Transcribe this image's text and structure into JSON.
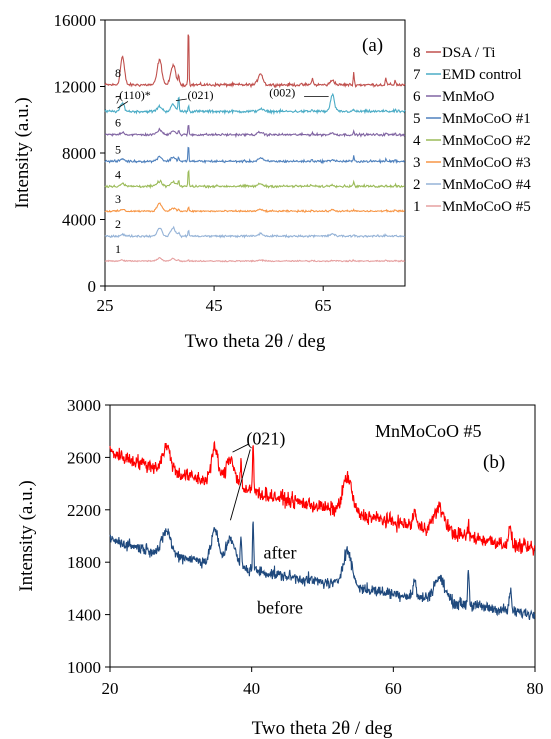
{
  "chart_data": [
    {
      "type": "line",
      "panel_label": "(a)",
      "xlabel": "Two theta 2θ  / deg",
      "ylabel": "Intensity (a.u.)",
      "xlim": [
        25,
        80
      ],
      "ylim": [
        0,
        16000
      ],
      "xticks": [
        25,
        45,
        65
      ],
      "yticks": [
        0,
        4000,
        8000,
        12000,
        16000
      ],
      "grid": false,
      "legend_position": "right",
      "series": [
        {
          "num": "8",
          "name": "DSA / Ti",
          "color": "#c0504d",
          "baseline": 12100,
          "noise": 90
        },
        {
          "num": "7",
          "name": "EMD control",
          "color": "#4bacc6",
          "baseline": 10500,
          "noise": 80
        },
        {
          "num": "6",
          "name": "MnMoO",
          "color": "#8064a2",
          "baseline": 9100,
          "noise": 70
        },
        {
          "num": "5",
          "name": "MnMoCoO #1",
          "color": "#4f81bd",
          "baseline": 7500,
          "noise": 70
        },
        {
          "num": "4",
          "name": "MnMoCoO #2",
          "color": "#9bbb59",
          "baseline": 6000,
          "noise": 70
        },
        {
          "num": "3",
          "name": "MnMoCoO #3",
          "color": "#f79646",
          "baseline": 4500,
          "noise": 50
        },
        {
          "num": "2",
          "name": "MnMoCoO #4",
          "color": "#95b3d7",
          "baseline": 3000,
          "noise": 60
        },
        {
          "num": "1",
          "name": "MnMoCoO #5",
          "color": "#e6a0a0",
          "baseline": 1500,
          "noise": 40
        }
      ],
      "annotations": [
        {
          "text": "(110)*",
          "x": 30.5,
          "y": 11250
        },
        {
          "text": "(021)",
          "x": 42.5,
          "y": 11250
        },
        {
          "text": "(002)",
          "x": 57.5,
          "y": 11400
        }
      ]
    },
    {
      "type": "line",
      "panel_label": "(b)",
      "title": "MnMoCoO #5",
      "xlabel": "Two theta 2θ  / deg",
      "ylabel": "Intensity (a.u.)",
      "xlim": [
        20,
        80
      ],
      "ylim": [
        1000,
        3000
      ],
      "xticks": [
        20,
        40,
        60,
        80
      ],
      "yticks": [
        1000,
        1400,
        1800,
        2200,
        2600,
        3000
      ],
      "grid": false,
      "series": [
        {
          "name": "after",
          "color": "#ff0000",
          "baseline": 2650,
          "end": 1900,
          "noise": 55
        },
        {
          "name": "before",
          "color": "#1f497d",
          "baseline": 1980,
          "end": 1400,
          "noise": 45
        }
      ],
      "annotations": [
        {
          "text": "(021)",
          "x": 42,
          "y": 2700
        },
        {
          "text": "after",
          "x": 44,
          "y": 1830
        },
        {
          "text": "before",
          "x": 44,
          "y": 1410
        }
      ]
    }
  ]
}
